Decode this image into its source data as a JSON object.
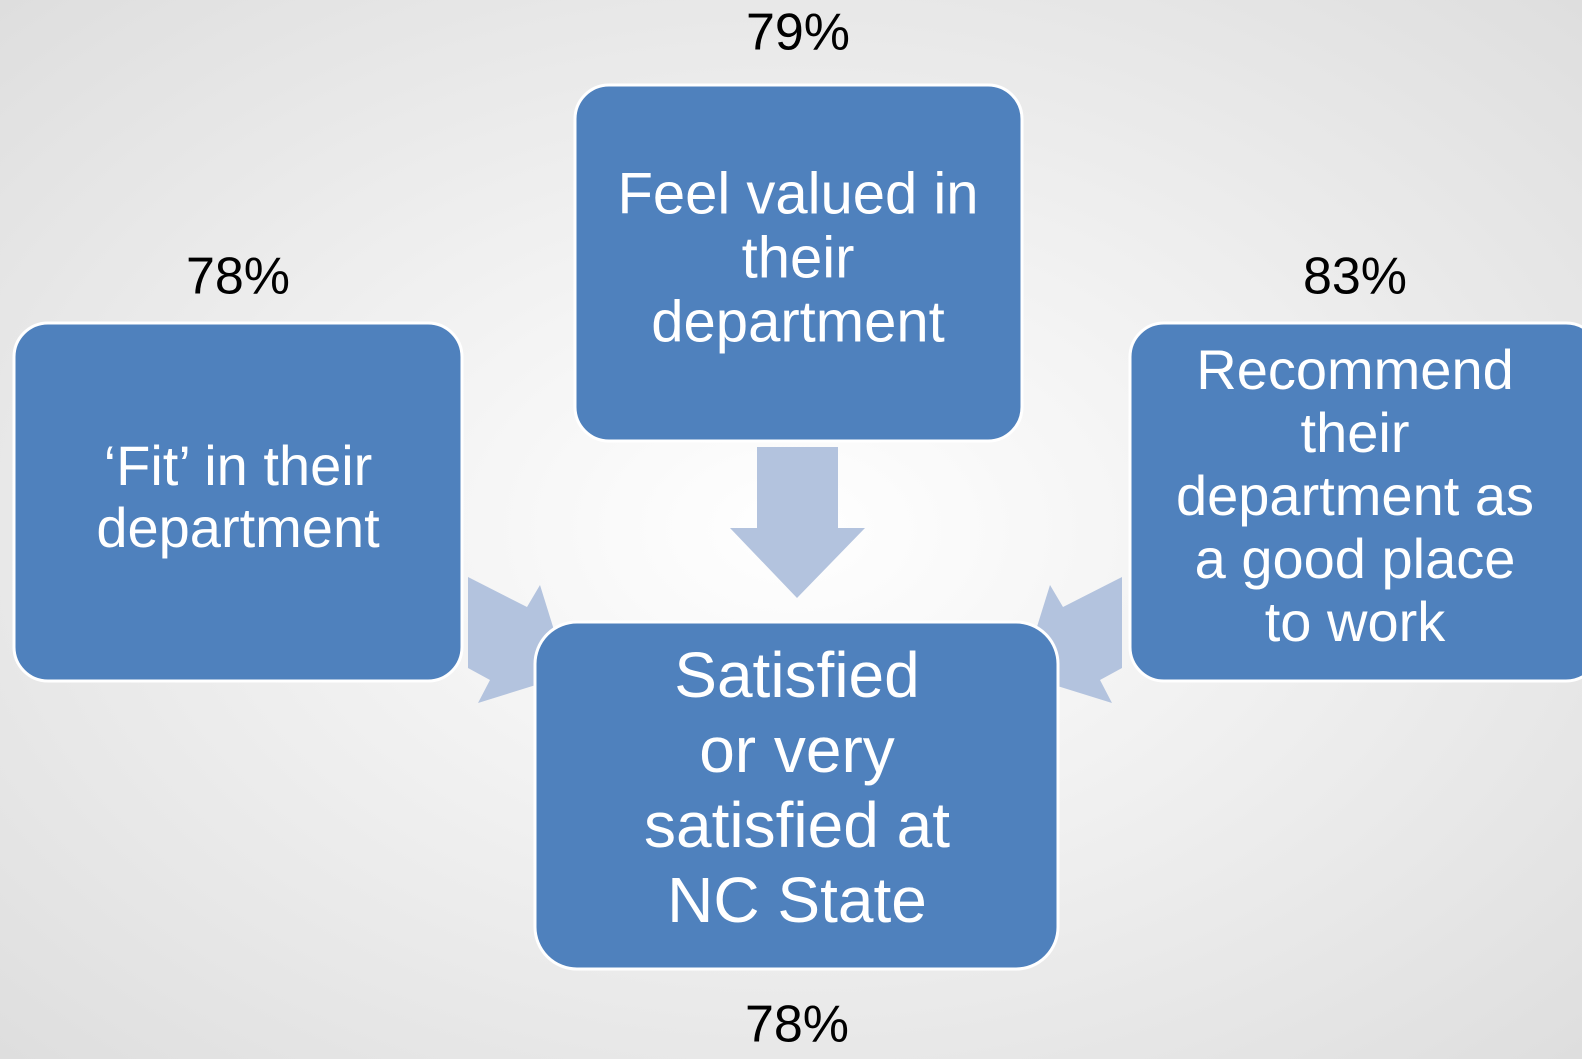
{
  "nodes": [
    {
      "percent": "79%",
      "label": [
        "Feel valued in",
        "their",
        "department"
      ]
    },
    {
      "percent": "78%",
      "label": [
        "‘Fit’ in their",
        "department"
      ]
    },
    {
      "percent": "83%",
      "label": [
        "Recommend",
        "their",
        "department as",
        "a good place",
        "to work"
      ]
    },
    {
      "percent": "78%",
      "label": [
        "Satisfied",
        "or very",
        "satisfied at",
        "NC State"
      ]
    }
  ]
}
